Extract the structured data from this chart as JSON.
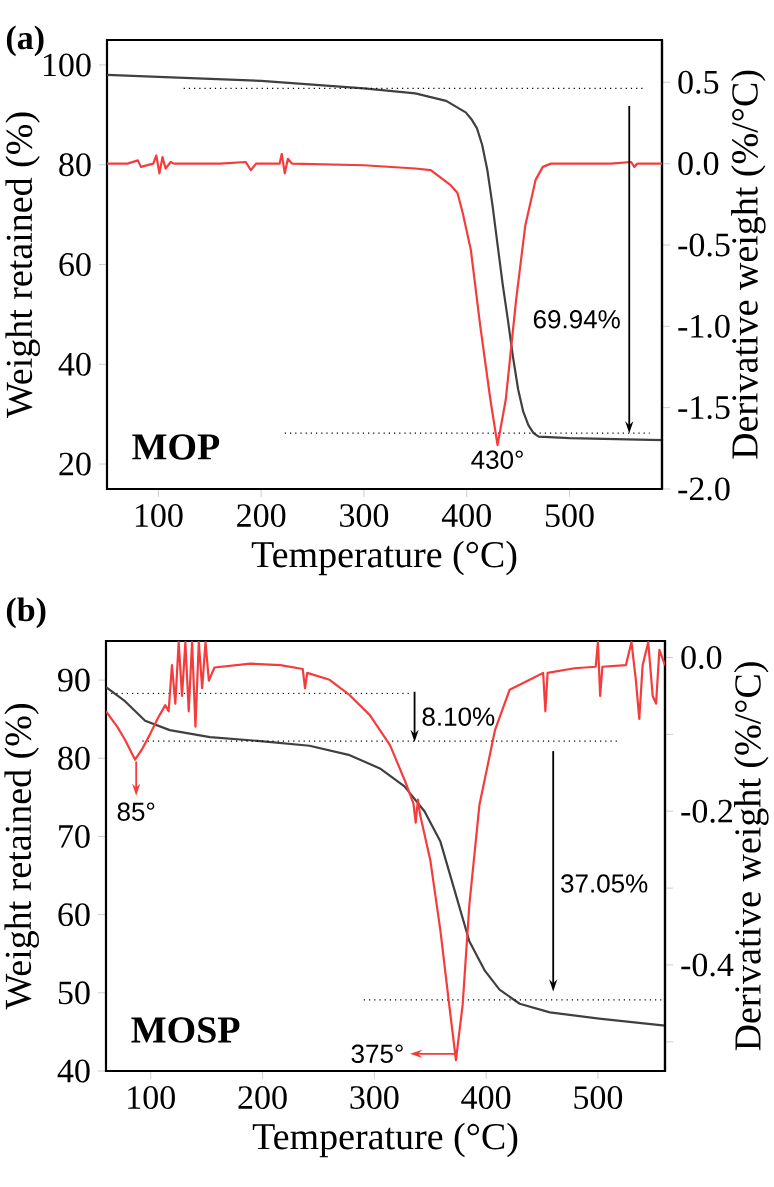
{
  "chart_data": [
    {
      "type": "line",
      "title": "(a)",
      "xlabel": "Temperature (°C)",
      "ylabel": "Weight retained (%)",
      "y2label": "Derivative weight (%/°C)",
      "xlim": [
        50,
        590
      ],
      "ylim": [
        15,
        105
      ],
      "y2lim": [
        -2.0,
        0.76
      ],
      "xticks": [
        100,
        200,
        300,
        400,
        500
      ],
      "yticks": [
        20,
        40,
        60,
        80,
        100
      ],
      "y2ticks": [
        0.5,
        {
          "value": 0,
          "label": "0.0"
        },
        -0.5,
        {
          "value": -1,
          "label": "-1.0"
        },
        -1.5,
        {
          "value": -2,
          "label": "-2.0"
        }
      ],
      "annotations": [
        "69.94%",
        {
          "text": "430°",
          "x": 430,
          "y": 24
        },
        "MOP"
      ],
      "series": [
        {
          "color": "#404040",
          "x": [
            50,
            100,
            200,
            300,
            350,
            380,
            399,
            405,
            410,
            415,
            420,
            425,
            430,
            435,
            440,
            445,
            450,
            455,
            460,
            465,
            470,
            500,
            590
          ],
          "values": [
            98.0,
            97.6,
            96.8,
            95.3,
            94.3,
            92.8,
            90.5,
            89.0,
            87.3,
            84.0,
            79,
            72,
            64,
            56,
            49,
            41.5,
            35,
            30.5,
            27.8,
            26.2,
            25.5,
            25.2,
            24.8
          ]
        },
        {
          "color": "#f53c3c",
          "axis": "y2",
          "x": [
            50,
            70,
            80,
            83,
            95,
            98,
            101,
            104,
            107,
            112,
            115,
            160,
            185,
            190,
            195,
            218,
            220,
            223,
            226,
            230,
            300,
            350,
            365,
            384,
            391,
            396,
            404,
            413,
            423,
            430,
            438,
            448,
            457,
            467,
            474,
            482,
            540,
            560,
            563,
            566,
            590
          ],
          "values": [
            0.0,
            0.0,
            0.02,
            -0.02,
            0.0,
            0.05,
            -0.06,
            0.04,
            -0.03,
            0.01,
            0.0,
            0.0,
            0.01,
            -0.04,
            0.0,
            0.0,
            0.06,
            -0.06,
            0.03,
            0.0,
            -0.01,
            -0.03,
            -0.04,
            -0.13,
            -0.18,
            -0.3,
            -0.53,
            -0.99,
            -1.45,
            -1.73,
            -1.45,
            -0.84,
            -0.38,
            -0.1,
            -0.02,
            0.0,
            0.0,
            0.01,
            -0.02,
            0.0,
            0.0
          ]
        },
        {
          "color": "#000000",
          "line_style": "dotted",
          "x": [
            124.6,
            574
          ],
          "values": [
            95.3,
            95.3
          ]
        },
        {
          "color": "#000000",
          "line_style": "dotted",
          "x": [
            223,
            578
          ],
          "values": [
            26.2,
            26.2
          ]
        }
      ]
    },
    {
      "type": "line",
      "title": "(b)",
      "xlabel": "Temperature (°C)",
      "ylabel": "Weight retained (%)",
      "y2label": "Derivative weight (%/°C)",
      "xlim": [
        60,
        560
      ],
      "ylim": [
        40,
        95
      ],
      "y2lim": [
        -0.538,
        0.0215
      ],
      "xticks": [
        100,
        200,
        300,
        400,
        500
      ],
      "yticks": [
        40,
        50,
        60,
        70,
        80,
        90
      ],
      "y2ticks": [
        {
          "value": 0,
          "label": "0.0"
        },
        {
          "value": -0.1,
          "label": null
        },
        -0.2,
        {
          "value": -0.3,
          "label": null
        },
        -0.4,
        {
          "value": -0.5,
          "label": null
        }
      ],
      "annotations": [
        "8.10%",
        "37.05%",
        "85°",
        "375°",
        "MOSP"
      ],
      "series": [
        {
          "color": "#404040",
          "x": [
            60,
            77,
            95,
            117,
            153,
            198,
            242,
            278,
            305,
            327,
            345,
            359,
            372,
            385,
            399,
            412,
            430,
            457,
            501,
            560
          ],
          "values": [
            89.1,
            87.3,
            84.8,
            83.6,
            82.7,
            82.2,
            81.6,
            80.4,
            78.7,
            76.4,
            73.2,
            69.4,
            63.0,
            56.6,
            52.8,
            50.4,
            48.6,
            47.5,
            46.7,
            45.8
          ]
        },
        {
          "color": "#f53c3c",
          "axis": "y2",
          "x": [
            60,
            70,
            77,
            86,
            92,
            99,
            106,
            113,
            116,
            119,
            122,
            125,
            128,
            131,
            134,
            137,
            140,
            143,
            146,
            149,
            152,
            157,
            189,
            216,
            236,
            238,
            240,
            260,
            278,
            296,
            314,
            327,
            335,
            337,
            339,
            341,
            350,
            359,
            367,
            373,
            379,
            385,
            394,
            408,
            421,
            439,
            451,
            453,
            455,
            479,
            498,
            500,
            502,
            504,
            525,
            530,
            534,
            537,
            540,
            545,
            549,
            552,
            555,
            560
          ],
          "values": [
            -0.07,
            -0.09,
            -0.107,
            -0.133,
            -0.12,
            -0.101,
            -0.08,
            -0.062,
            -0.07,
            -0.01,
            -0.06,
            0.02,
            -0.05,
            0.02,
            -0.07,
            0.02,
            -0.09,
            0.02,
            -0.04,
            0.02,
            -0.03,
            -0.013,
            -0.008,
            -0.01,
            -0.015,
            -0.04,
            -0.02,
            -0.029,
            -0.049,
            -0.075,
            -0.114,
            -0.159,
            -0.19,
            -0.215,
            -0.185,
            -0.205,
            -0.263,
            -0.354,
            -0.452,
            -0.524,
            -0.452,
            -0.322,
            -0.192,
            -0.094,
            -0.042,
            -0.029,
            -0.02,
            -0.07,
            -0.02,
            -0.014,
            -0.012,
            0.02,
            -0.05,
            -0.012,
            -0.01,
            0.02,
            -0.03,
            -0.08,
            -0.01,
            0.02,
            -0.05,
            -0.06,
            0.01,
            -0.01
          ]
        },
        {
          "color": "#000000",
          "line_style": "dotted",
          "x": [
            60,
            332
          ],
          "values": [
            88.3,
            88.3
          ]
        },
        {
          "color": "#000000",
          "line_style": "dotted",
          "x": [
            92.6,
            519
          ],
          "values": [
            82.2,
            82.2
          ]
        },
        {
          "color": "#000000",
          "line_style": "dotted",
          "x": [
            290.6,
            557
          ],
          "values": [
            49.1,
            49.1
          ]
        }
      ]
    }
  ]
}
